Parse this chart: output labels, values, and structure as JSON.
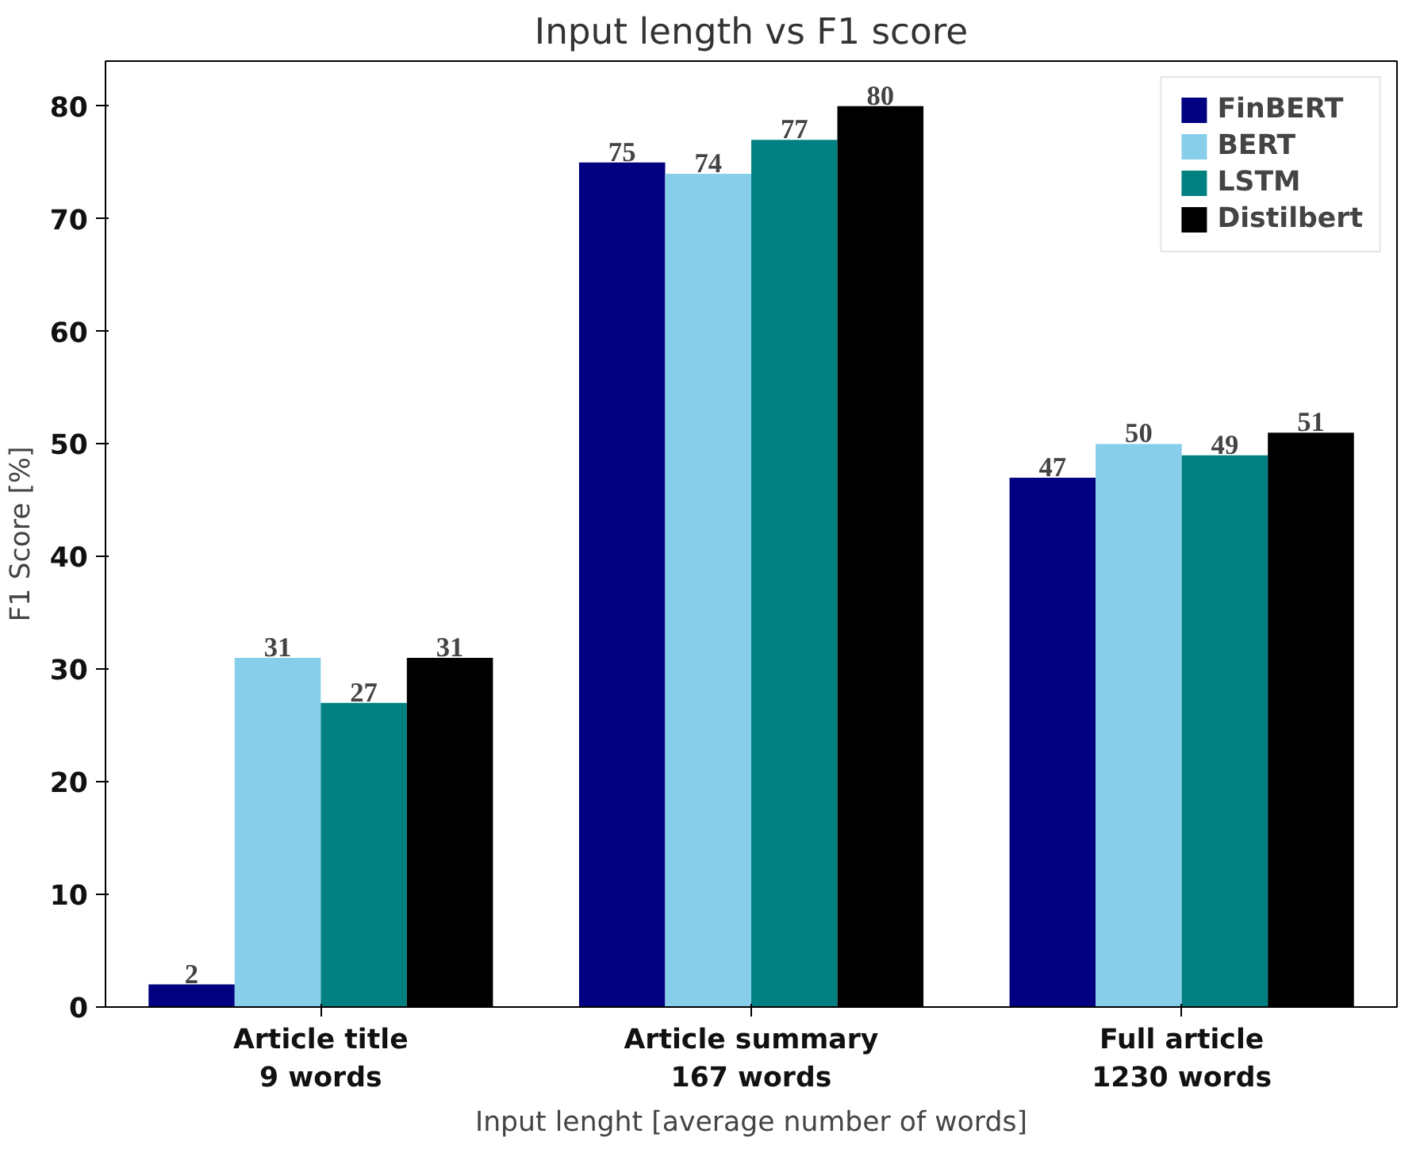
{
  "chart_data": {
    "type": "bar",
    "title": "Input length vs F1 score",
    "xlabel": "Input lenght [average number of words]",
    "ylabel": "F1 Score [%]",
    "categories": [
      "Article title\n9 words",
      "Article summary\n167 words",
      "Full article\n1230 words"
    ],
    "series": [
      {
        "name": "FinBERT",
        "color": "#000080",
        "values": [
          2,
          75,
          47
        ]
      },
      {
        "name": "BERT",
        "color": "#87ceeb",
        "values": [
          31,
          74,
          50
        ]
      },
      {
        "name": "LSTM",
        "color": "#008080",
        "values": [
          27,
          77,
          49
        ]
      },
      {
        "name": "Distilbert",
        "color": "#000000",
        "values": [
          31,
          80,
          51
        ]
      }
    ],
    "ylim": [
      0,
      84
    ],
    "yticks": [
      0,
      10,
      20,
      30,
      40,
      50,
      60,
      70,
      80
    ],
    "grid": false,
    "legend": "top right",
    "data_labels": true
  }
}
